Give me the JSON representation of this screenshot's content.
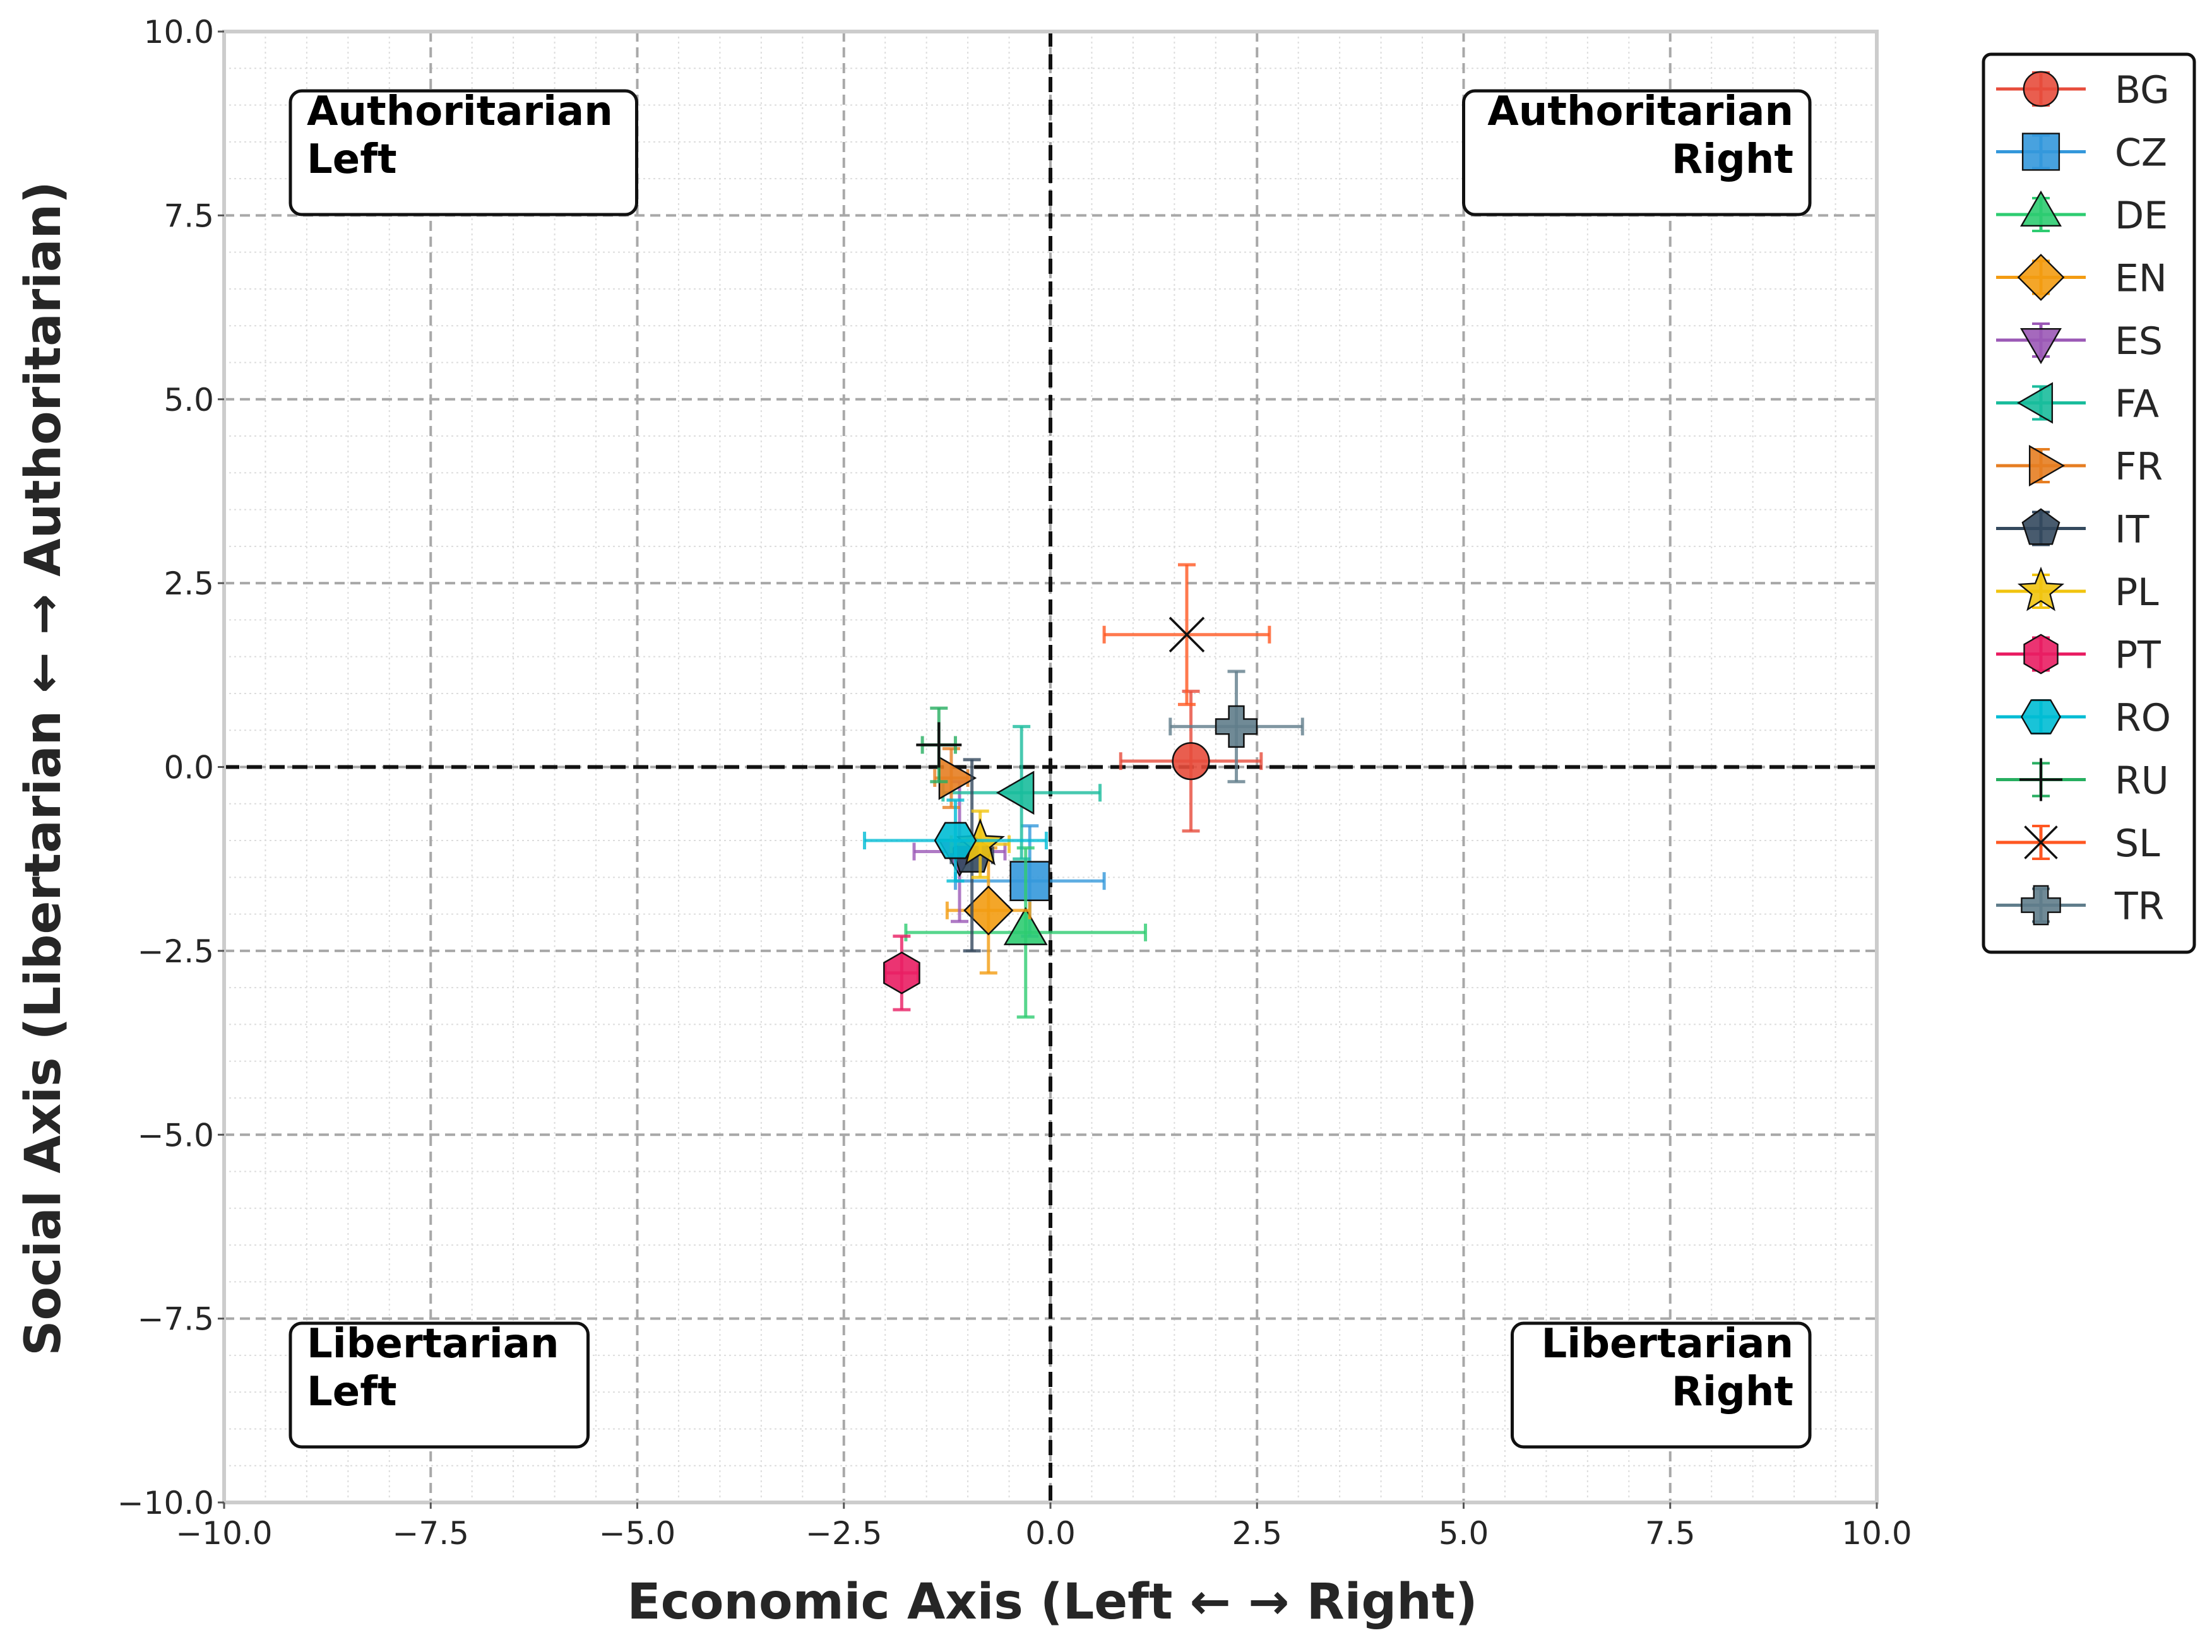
{
  "chart_data": {
    "type": "scatter",
    "title": "",
    "xlabel": "Economic Axis (Left ← → Right)",
    "ylabel": "Social Axis (Libertarian ← → Authoritarian)",
    "xlim": [
      -10,
      10
    ],
    "ylim": [
      -10,
      10
    ],
    "x_ticks": [
      -10,
      -7.5,
      -5,
      -2.5,
      0,
      2.5,
      5,
      7.5,
      10
    ],
    "y_ticks": [
      -10,
      -7.5,
      -5,
      -2.5,
      0,
      2.5,
      5,
      7.5,
      10
    ],
    "x_tick_labels": [
      "−10.0",
      "−7.5",
      "−5.0",
      "−2.5",
      "0.0",
      "2.5",
      "5.0",
      "7.5",
      "10.0"
    ],
    "y_tick_labels": [
      "−10.0",
      "−7.5",
      "−5.0",
      "−2.5",
      "0.0",
      "2.5",
      "5.0",
      "7.5",
      "10.0"
    ],
    "grid": true,
    "legend_position": "outside-right",
    "quadrant_labels": [
      {
        "id": "auth-left",
        "lines": [
          "Authoritarian",
          "Left"
        ],
        "corner": "top-left"
      },
      {
        "id": "auth-right",
        "lines": [
          "Authoritarian",
          "Right"
        ],
        "corner": "top-right"
      },
      {
        "id": "lib-left",
        "lines": [
          "Libertarian",
          "Left"
        ],
        "corner": "bottom-left"
      },
      {
        "id": "lib-right",
        "lines": [
          "Libertarian",
          "Right"
        ],
        "corner": "bottom-right"
      }
    ],
    "series": [
      {
        "name": "BG",
        "marker": "circle",
        "color": "#e74c3c",
        "x": 1.7,
        "y": 0.08,
        "xerr": 0.85,
        "yerr": 0.95
      },
      {
        "name": "CZ",
        "marker": "square",
        "color": "#3498db",
        "x": -0.25,
        "y": -1.55,
        "xerr": 0.9,
        "yerr": 0.75
      },
      {
        "name": "DE",
        "marker": "triangle-up",
        "color": "#2ecc71",
        "x": -0.3,
        "y": -2.25,
        "xerr": 1.45,
        "yerr": 1.15
      },
      {
        "name": "EN",
        "marker": "diamond",
        "color": "#f39c12",
        "x": -0.75,
        "y": -1.95,
        "xerr": 0.5,
        "yerr": 0.85
      },
      {
        "name": "ES",
        "marker": "triangle-down",
        "color": "#9b59b6",
        "x": -1.1,
        "y": -1.15,
        "xerr": 0.55,
        "yerr": 0.95
      },
      {
        "name": "FA",
        "marker": "triangle-left",
        "color": "#1abc9c",
        "x": -0.35,
        "y": -0.35,
        "xerr": 0.95,
        "yerr": 0.9
      },
      {
        "name": "FR",
        "marker": "triangle-right",
        "color": "#e67e22",
        "x": -1.2,
        "y": -0.15,
        "xerr": 0.2,
        "yerr": 0.4
      },
      {
        "name": "IT",
        "marker": "pentagon",
        "color": "#34495e",
        "x": -0.95,
        "y": -1.2,
        "xerr": 0.25,
        "yerr": 1.3
      },
      {
        "name": "PL",
        "marker": "star",
        "color": "#f1c40f",
        "x": -0.85,
        "y": -1.05,
        "xerr": 0.35,
        "yerr": 0.45
      },
      {
        "name": "PT",
        "marker": "hexagon",
        "color": "#e91e63",
        "x": -1.8,
        "y": -2.8,
        "xerr": 0.2,
        "yerr": 0.5
      },
      {
        "name": "RO",
        "marker": "hexagon-flat",
        "color": "#00bcd4",
        "x": -1.15,
        "y": -1.0,
        "xerr": 1.1,
        "yerr": 0.55
      },
      {
        "name": "RU",
        "marker": "plus-thin",
        "color": "#27ae60",
        "x": -1.35,
        "y": 0.3,
        "xerr": 0.2,
        "yerr": 0.5
      },
      {
        "name": "SL",
        "marker": "x",
        "color": "#ff5722",
        "x": 1.65,
        "y": 1.8,
        "xerr": 1.0,
        "yerr": 0.95
      },
      {
        "name": "TR",
        "marker": "plus-filled",
        "color": "#607d8b",
        "x": 2.25,
        "y": 0.55,
        "xerr": 0.8,
        "yerr": 0.75
      }
    ]
  }
}
